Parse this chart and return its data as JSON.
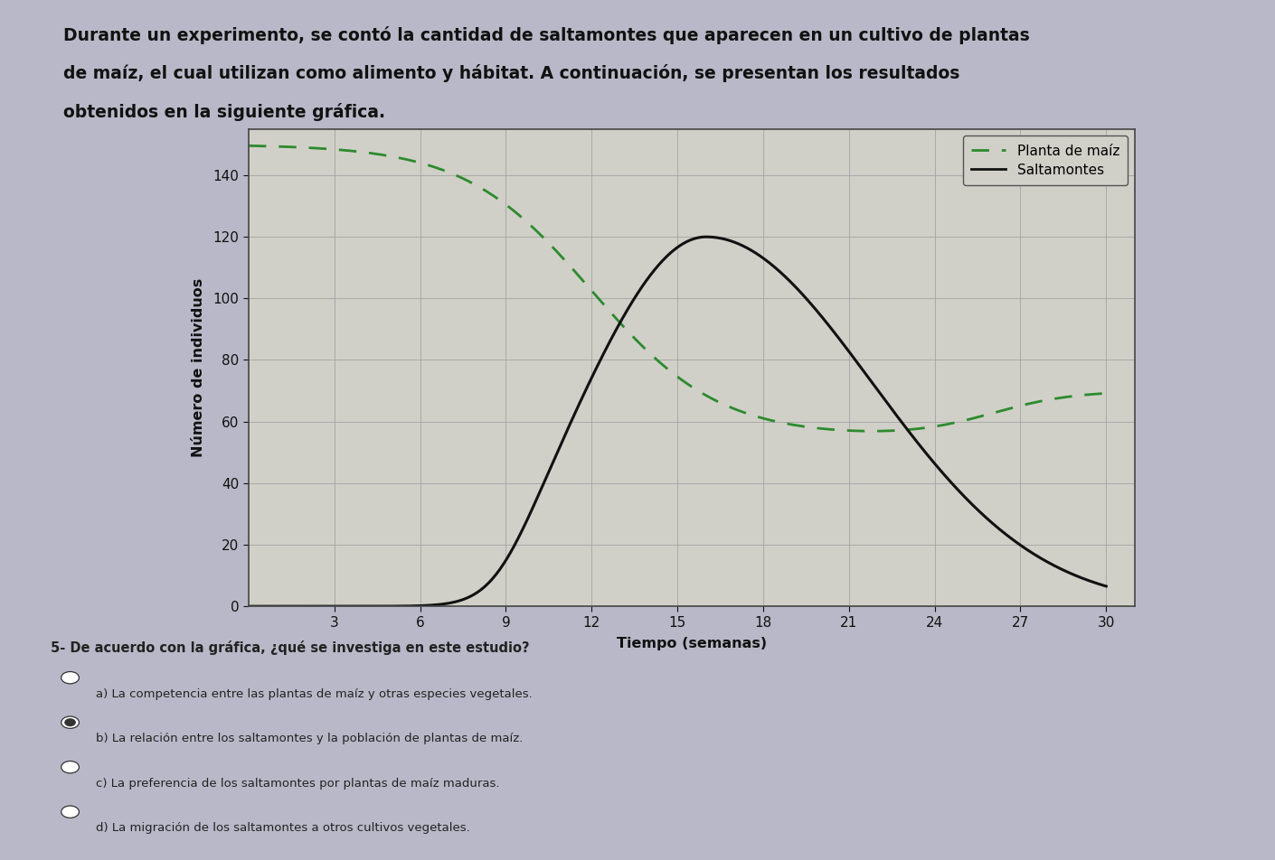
{
  "title_line1": "Durante un experimento, se contó la cantidad de saltamontes que aparecen en un cultivo de plantas",
  "title_line2": "de maíz, el cual utilizan como alimento y hábitat. A continuación, se presentan los resultados",
  "title_line3": "obtenidos en la siguiente gráfica.",
  "xlabel": "Tiempo (semanas)",
  "ylabel": "Número de individuos",
  "xlim": [
    0,
    31
  ],
  "ylim": [
    0,
    155
  ],
  "xticks": [
    3,
    6,
    9,
    12,
    15,
    18,
    21,
    24,
    27,
    30
  ],
  "yticks": [
    0,
    20,
    40,
    60,
    80,
    100,
    120,
    140
  ],
  "legend_labels": [
    "Planta de maíz",
    "Saltamontes"
  ],
  "line_maiz_color": "#2d8a2d",
  "line_saltamontes_color": "#111111",
  "page_bg_color": "#b8b8c8",
  "plot_bg_color": "#d0d0c8",
  "grid_color": "#a0a0a0",
  "question_text": "5- De acuerdo con la gráfica, ¿qué se investiga en este estudio?",
  "options": [
    "a) La competencia entre las plantas de maíz y otras especies vegetales.",
    "b) La relación entre los saltamontes y la población de plantas de maíz.",
    "c) La preferencia de los saltamontes por plantas de maíz maduras.",
    "d) La migración de los saltamontes a otros cultivos vegetales."
  ],
  "correct_option": 1
}
